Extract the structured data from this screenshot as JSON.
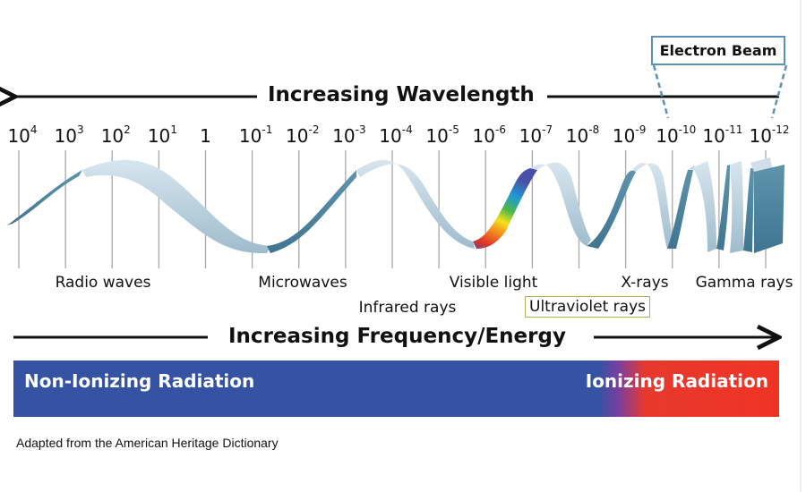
{
  "title_wavelength": "Increasing Wavelength",
  "title_frequency": "Increasing  Frequency/Energy",
  "electron_beam": "Electron Beam",
  "wavelength_ticks": [
    {
      "base": "10",
      "exp": "4"
    },
    {
      "base": "10",
      "exp": "3"
    },
    {
      "base": "10",
      "exp": "2"
    },
    {
      "base": "10",
      "exp": "1"
    },
    {
      "base": "1",
      "exp": ""
    },
    {
      "base": "10",
      "exp": "-1"
    },
    {
      "base": "10",
      "exp": "-2"
    },
    {
      "base": "10",
      "exp": "-3"
    },
    {
      "base": "10",
      "exp": "-4"
    },
    {
      "base": "10",
      "exp": "-5"
    },
    {
      "base": "10",
      "exp": "-6"
    },
    {
      "base": "10",
      "exp": "-7"
    },
    {
      "base": "10",
      "exp": "-8"
    },
    {
      "base": "10",
      "exp": "-9"
    },
    {
      "base": "10",
      "exp": "-10"
    },
    {
      "base": "10",
      "exp": "-11"
    },
    {
      "base": "10",
      "exp": "-12"
    }
  ],
  "bands": {
    "radio": "Radio waves",
    "microwaves": "Microwaves",
    "infrared": "Infrared rays",
    "visible": "Visible light",
    "ultraviolet": "Ultraviolet rays",
    "xrays": "X-rays",
    "gamma": "Gamma rays"
  },
  "radiation": {
    "non_ionizing": "Non-Ionizing Radiation",
    "ionizing": "Ionizing Radiation"
  },
  "credit": "Adapted from the American Heritage Dictionary",
  "colors": {
    "non_ionizing": "#3653a3",
    "ionizing": "#ef3424",
    "ribbon_light": "#c9dbe6",
    "ribbon_dark": "#4f86a0",
    "electron_beam_border": "#5a8fc2",
    "uv_border": "#a8b45a"
  }
}
